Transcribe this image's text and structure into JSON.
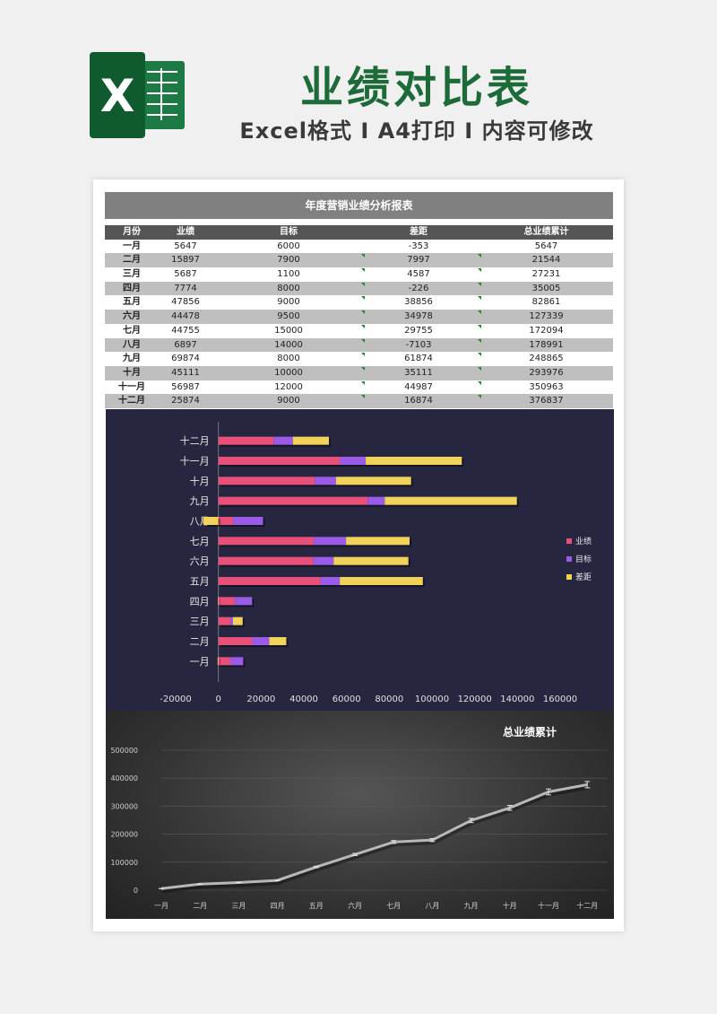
{
  "header": {
    "title": "业绩对比表",
    "subtitle": "Excel格式 I A4打印 I 内容可修改",
    "logo_letter": "X"
  },
  "table": {
    "title": "年度营销业绩分析报表",
    "columns": [
      "月份",
      "业绩",
      "目标",
      "差距",
      "总业绩累计"
    ],
    "rows": [
      [
        "一月",
        "5647",
        "6000",
        "-353",
        "5647"
      ],
      [
        "二月",
        "15897",
        "7900",
        "7997",
        "21544"
      ],
      [
        "三月",
        "5687",
        "1100",
        "4587",
        "27231"
      ],
      [
        "四月",
        "7774",
        "8000",
        "-226",
        "35005"
      ],
      [
        "五月",
        "47856",
        "9000",
        "38856",
        "82861"
      ],
      [
        "六月",
        "44478",
        "9500",
        "34978",
        "127339"
      ],
      [
        "七月",
        "44755",
        "15000",
        "29755",
        "172094"
      ],
      [
        "八月",
        "6897",
        "14000",
        "-7103",
        "178991"
      ],
      [
        "九月",
        "69874",
        "8000",
        "61874",
        "248865"
      ],
      [
        "十月",
        "45111",
        "10000",
        "35111",
        "293976"
      ],
      [
        "十一月",
        "56987",
        "12000",
        "44987",
        "350963"
      ],
      [
        "十二月",
        "25874",
        "9000",
        "16874",
        "376837"
      ]
    ]
  },
  "colors": {
    "brand_green": "#1e6b3a",
    "series_achieved": "#e8507a",
    "series_target": "#9a5ce8",
    "series_gap": "#f2d35a"
  },
  "chart_data": [
    {
      "type": "bar",
      "orientation": "horizontal",
      "stacked": true,
      "title": "",
      "categories": [
        "一月",
        "二月",
        "三月",
        "四月",
        "五月",
        "六月",
        "七月",
        "八月",
        "九月",
        "十月",
        "十一月",
        "十二月"
      ],
      "series": [
        {
          "name": "业绩",
          "values": [
            5647,
            15897,
            5687,
            7774,
            47856,
            44478,
            44755,
            6897,
            69874,
            45111,
            56987,
            25874
          ]
        },
        {
          "name": "目标",
          "values": [
            6000,
            7900,
            1100,
            8000,
            9000,
            9500,
            15000,
            14000,
            8000,
            10000,
            12000,
            9000
          ]
        },
        {
          "name": "差距",
          "values": [
            -353,
            7997,
            4587,
            -226,
            38856,
            34978,
            29755,
            -7103,
            61874,
            35111,
            44987,
            16874
          ]
        }
      ],
      "xlim": [
        -20000,
        160000
      ],
      "xticks": [
        -20000,
        0,
        20000,
        40000,
        60000,
        80000,
        100000,
        120000,
        140000,
        160000
      ],
      "legend": "right",
      "grid": false
    },
    {
      "type": "line",
      "title": "总业绩累计",
      "categories": [
        "一月",
        "二月",
        "三月",
        "四月",
        "五月",
        "六月",
        "七月",
        "八月",
        "九月",
        "十月",
        "十一月",
        "十二月"
      ],
      "series": [
        {
          "values": [
            5647,
            21544,
            27231,
            35005,
            82861,
            127339,
            172094,
            178991,
            248865,
            293976,
            350963,
            376837
          ]
        }
      ],
      "ylim": [
        0,
        500000
      ],
      "yticks": [
        0,
        100000,
        200000,
        300000,
        400000,
        500000
      ],
      "error_bars": true,
      "grid": true
    }
  ]
}
